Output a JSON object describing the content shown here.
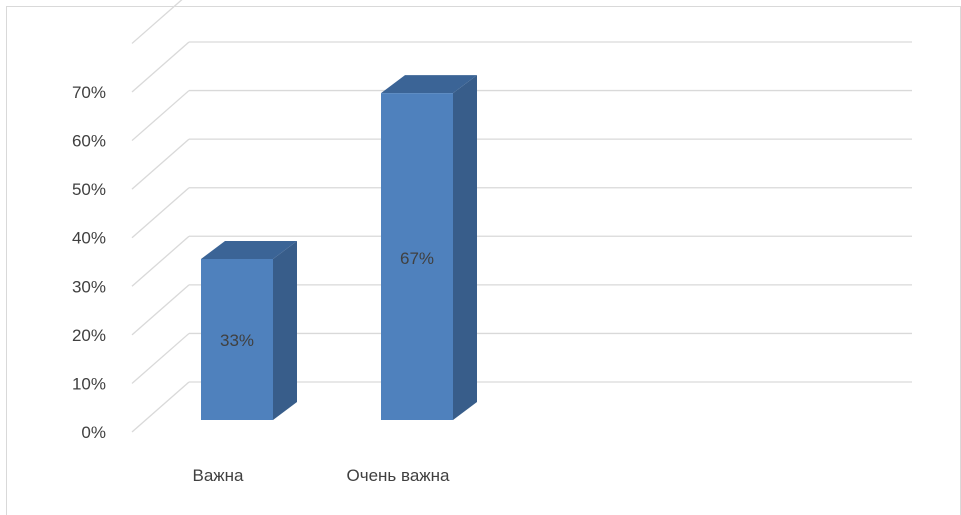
{
  "chart_data": {
    "type": "bar",
    "style": "3d-column",
    "categories": [
      "Важна",
      "Очень важна"
    ],
    "values": [
      33,
      67
    ],
    "data_labels": [
      "33%",
      "67%"
    ],
    "title": "",
    "xlabel": "",
    "ylabel": "",
    "ylim": [
      0,
      80
    ],
    "yticks": [
      0,
      10,
      20,
      30,
      40,
      50,
      60,
      70
    ],
    "ytick_labels": [
      "0%",
      "10%",
      "20%",
      "30%",
      "40%",
      "50%",
      "60%",
      "70%"
    ],
    "grid": true,
    "legend": "none",
    "colors": {
      "bar_front": "#4f81bd",
      "bar_side": "#385d8a",
      "bar_top": "#3b6496",
      "bar_side_dark": "#2f5077",
      "gridline": "#d9d9d9",
      "frame": "#d9d9d9",
      "text": "#404040"
    }
  }
}
